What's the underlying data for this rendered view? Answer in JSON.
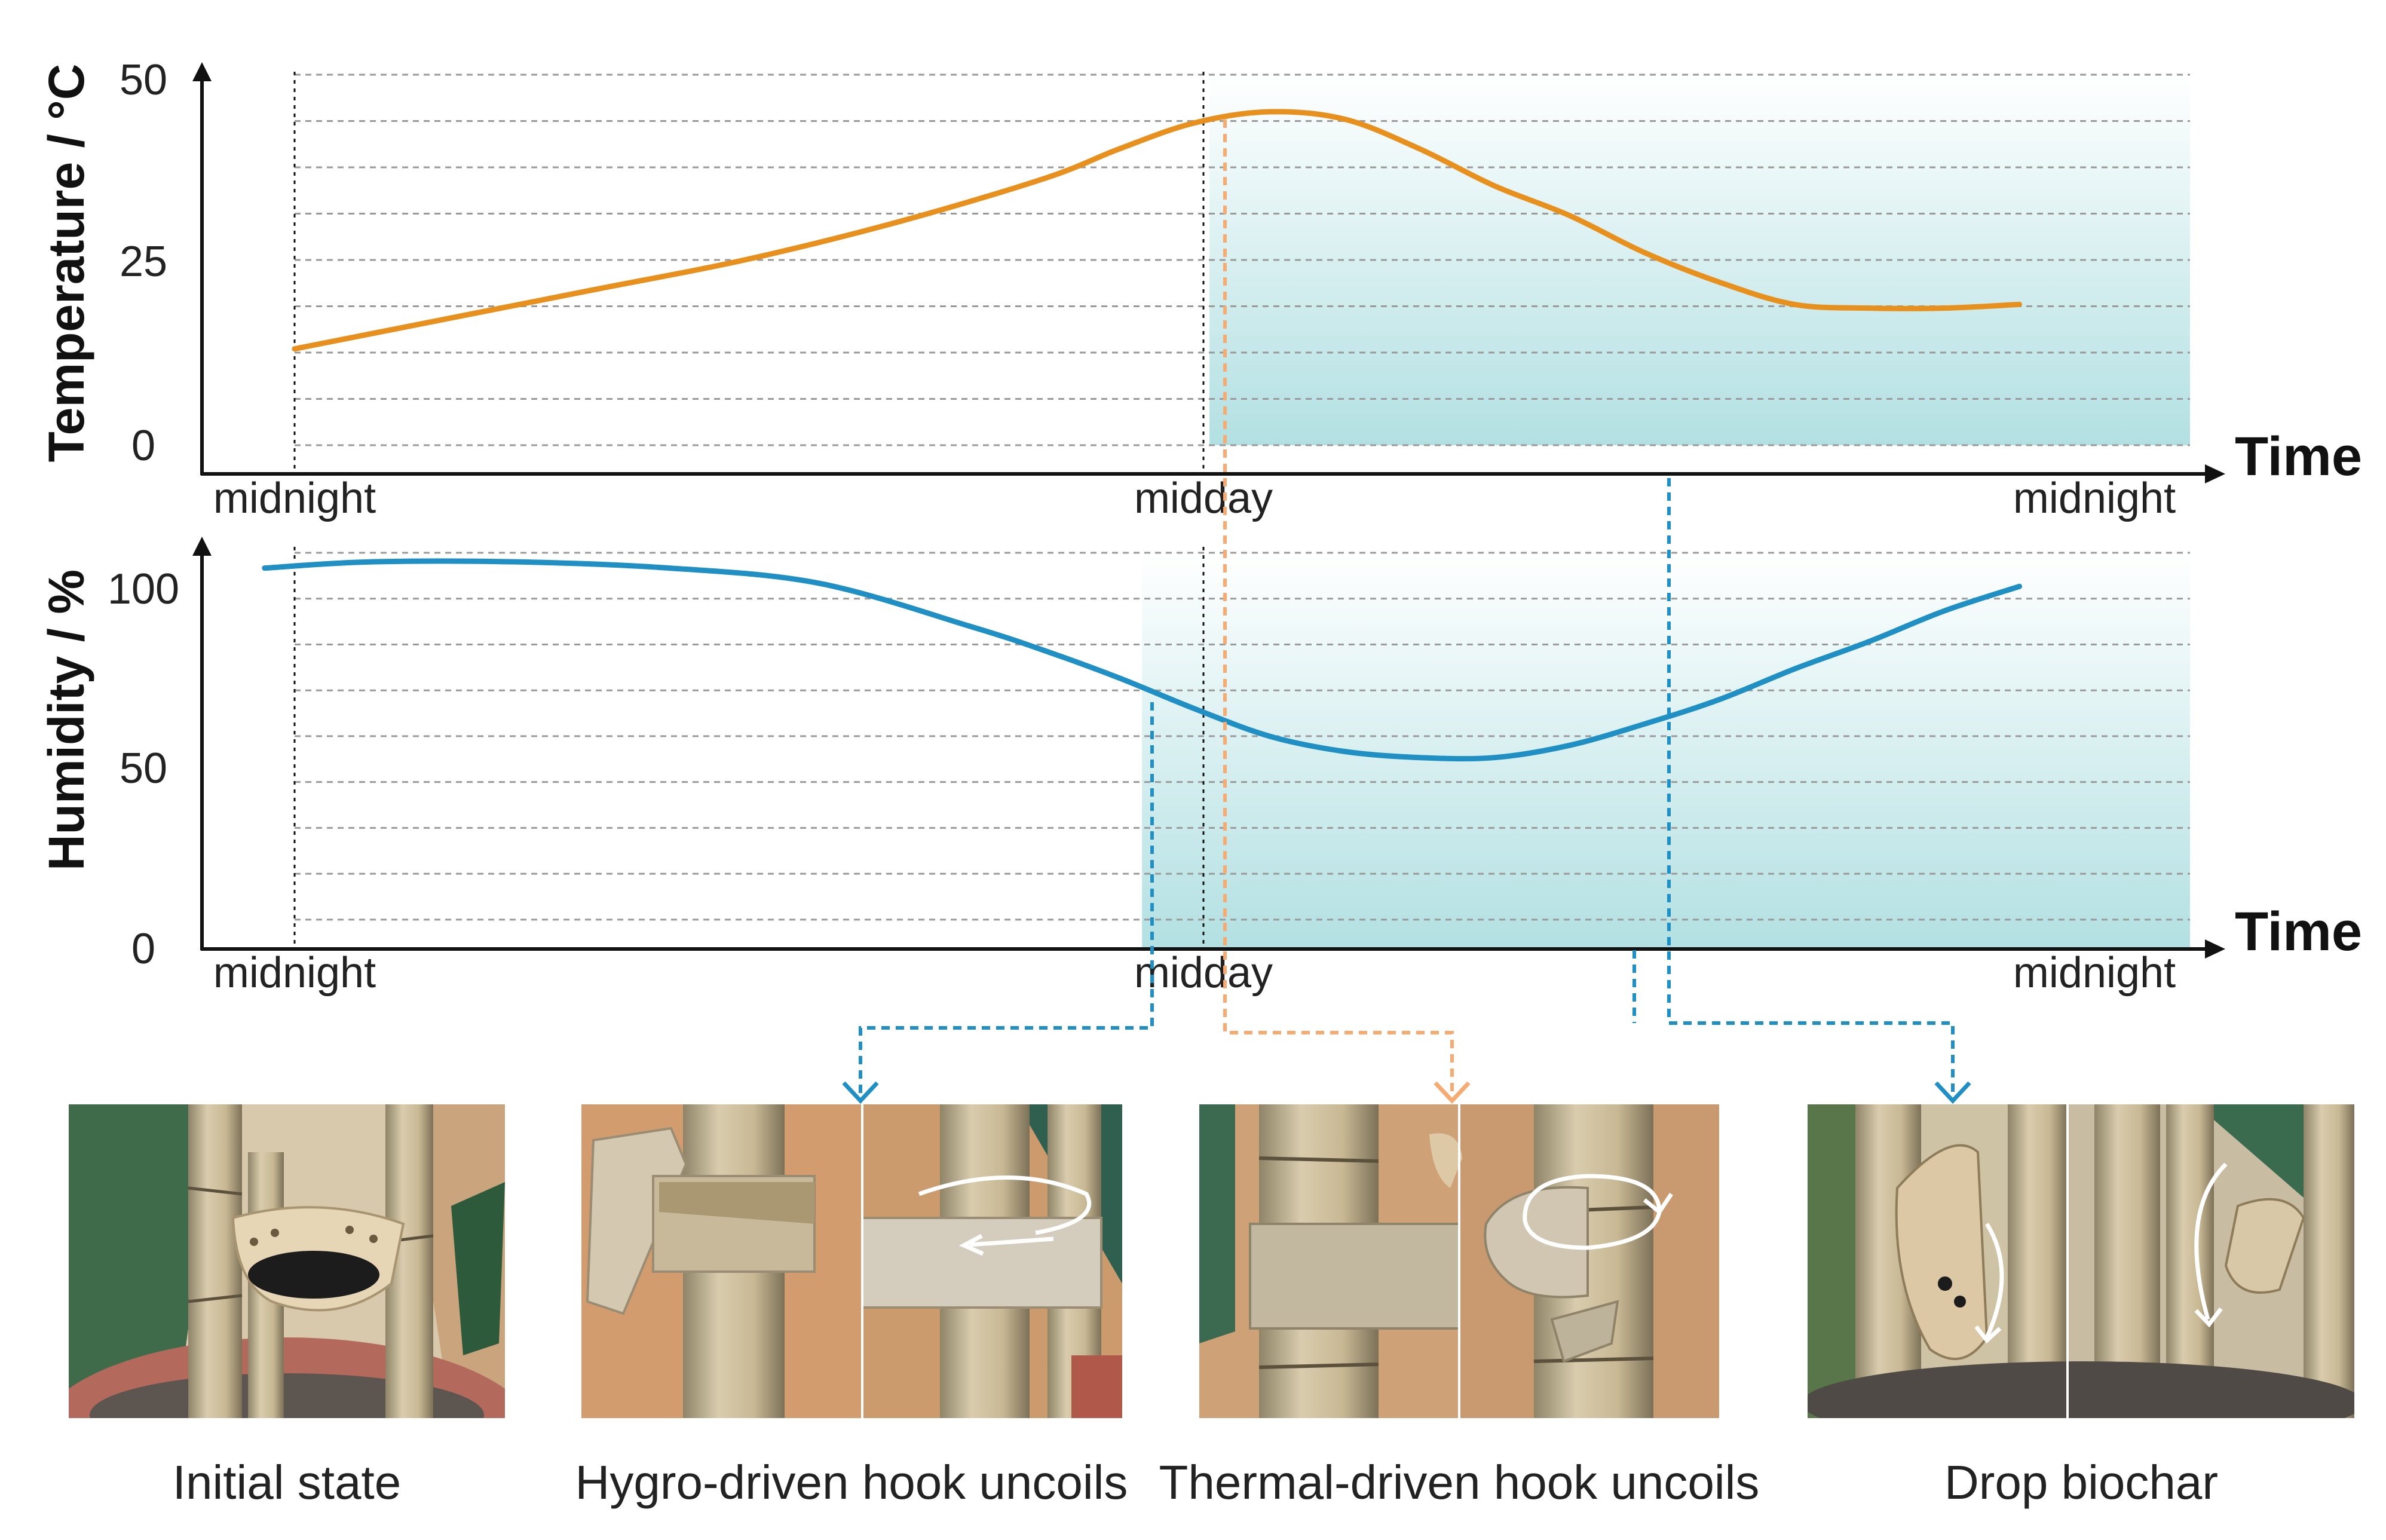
{
  "chart_data": [
    {
      "type": "line",
      "ylabel": "Temperature / °C",
      "xlabel": "Time",
      "yticks": [
        "0",
        "25",
        "50"
      ],
      "ylim": [
        0,
        50
      ],
      "xticks": [
        "midnight",
        "midday",
        "midnight"
      ],
      "xlim": [
        0,
        24
      ],
      "grid": true,
      "shaded_from": 12.2,
      "series": [
        {
          "color": "#e8901e",
          "x": [
            0,
            2,
            4,
            6,
            8,
            10,
            11,
            12,
            13,
            14,
            15,
            16,
            17,
            18,
            19,
            20,
            21,
            22,
            23
          ],
          "y": [
            13,
            17,
            21,
            25,
            30,
            36,
            40,
            43.5,
            45,
            44,
            40,
            35,
            31,
            26,
            22,
            19,
            18.5,
            18.5,
            19
          ]
        }
      ]
    },
    {
      "type": "line",
      "ylabel": "Humidity / %",
      "xlabel": "Time",
      "yticks": [
        "0",
        "50",
        "100"
      ],
      "ylim": [
        0,
        130
      ],
      "xticks": [
        "midnight",
        "midday",
        "midnight"
      ],
      "xlim": [
        0,
        24
      ],
      "grid": true,
      "shaded_from": 11.3,
      "series": [
        {
          "color": "#1f8fc4",
          "x": [
            -0.4,
            1,
            3,
            5,
            7,
            9,
            10,
            11,
            12,
            13,
            14,
            15,
            16,
            17,
            18,
            19,
            20,
            21,
            22,
            23
          ],
          "y": [
            125,
            127,
            127,
            125,
            120,
            106,
            98,
            89,
            79,
            70,
            65,
            63,
            63,
            67,
            74,
            82,
            92,
            101,
            111,
            119
          ]
        }
      ]
    }
  ],
  "panels": [
    {
      "caption": "Initial state",
      "photo": "bamboo-with-biochar-hook"
    },
    {
      "caption": "Hygro-driven hook uncoils",
      "photo": "hook-uncoiling-hygro"
    },
    {
      "caption": "Thermal-driven hook uncoils",
      "photo": "hook-uncoiling-thermal"
    },
    {
      "caption": "Drop biochar",
      "photo": "hook-dropping-biochar"
    }
  ],
  "colors": {
    "temperature": "#e8901e",
    "humidity": "#1f8fc4",
    "thermal_connector": "#f6ab73",
    "hygro_connector": "#1f8fc4",
    "shade": "#b2e0e2"
  }
}
